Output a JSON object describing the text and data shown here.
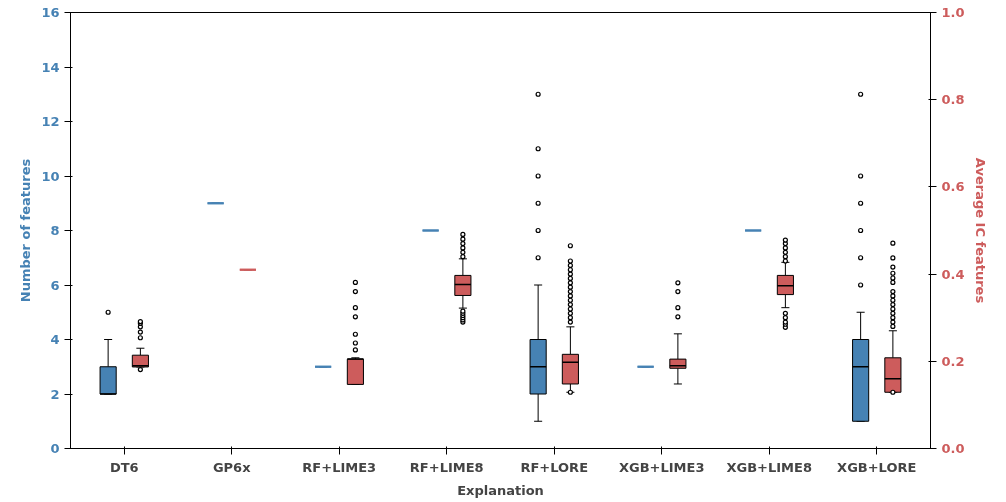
{
  "chart_data": {
    "type": "box",
    "xlabel": "Explanation",
    "ylabel": "Number of features",
    "y2label": "Average IC features",
    "categories": [
      "DT6",
      "GP6x",
      "RF+LIME3",
      "RF+LIME8",
      "RF+LORE",
      "XGB+LIME3",
      "XGB+LIME8",
      "XGB+LORE"
    ],
    "ylim": [
      0,
      16
    ],
    "yticks": [
      0,
      2,
      4,
      6,
      8,
      10,
      12,
      14,
      16
    ],
    "y2lim": [
      0,
      1
    ],
    "y2ticks": [
      {
        "value": 0,
        "label": "0.0"
      },
      {
        "value": 0.2,
        "label": "0.2"
      },
      {
        "value": 0.4,
        "label": "0.4"
      },
      {
        "value": 0.6,
        "label": "0.6"
      },
      {
        "value": 0.8,
        "label": "0.8"
      },
      {
        "value": 1,
        "label": "1.0"
      }
    ],
    "grid": false,
    "series": [
      {
        "color": "#4682b4",
        "axis": "y",
        "boxes": [
          {
            "low": 2,
            "q1": 2,
            "median": 2,
            "q3": 3,
            "high": 4,
            "outliers": [
              5
            ]
          },
          {
            "low": 9,
            "q1": 9,
            "median": 9,
            "q3": 9,
            "high": 9
          },
          {
            "low": 3,
            "q1": 3,
            "median": 3,
            "q3": 3,
            "high": 3
          },
          {
            "low": 8,
            "q1": 8,
            "median": 8,
            "q3": 8,
            "high": 8
          },
          {
            "low": 1,
            "q1": 2,
            "median": 3,
            "q3": 4,
            "high": 6,
            "outliers": [
              7,
              8,
              9,
              10,
              11,
              13
            ]
          },
          {
            "low": 3,
            "q1": 3,
            "median": 3,
            "q3": 3,
            "high": 3
          },
          {
            "low": 8,
            "q1": 8,
            "median": 8,
            "q3": 8,
            "high": 8
          },
          {
            "low": 1,
            "q1": 1,
            "median": 3,
            "q3": 4,
            "high": 5,
            "outliers": [
              6,
              7,
              8,
              9,
              10,
              13
            ]
          }
        ]
      },
      {
        "color": "#cd5c5c",
        "axis": "y2",
        "boxes": [
          {
            "low": 0.187,
            "q1": 0.187,
            "median": 0.19,
            "q3": 0.214,
            "high": 0.23,
            "outliers": [
              0.181,
              0.254,
              0.267,
              0.279,
              0.287,
              0.291
            ]
          },
          {
            "low": 0.41,
            "q1": 0.41,
            "median": 0.41,
            "q3": 0.41,
            "high": 0.41
          },
          {
            "low": 0.147,
            "q1": 0.147,
            "median": 0.205,
            "q3": 0.205,
            "high": 0.208,
            "outliers": [
              0.226,
              0.242,
              0.262,
              0.302,
              0.323,
              0.36,
              0.381
            ]
          },
          {
            "low": 0.322,
            "q1": 0.351,
            "median": 0.376,
            "q3": 0.397,
            "high": 0.435,
            "outliers": [
              0.29,
              0.295,
              0.3,
              0.305,
              0.31,
              0.315,
              0.44,
              0.45,
              0.46,
              0.47,
              0.48,
              0.491
            ]
          },
          {
            "low": 0.129,
            "q1": 0.148,
            "median": 0.198,
            "q3": 0.216,
            "high": 0.279,
            "outliers": [
              0.129,
              0.29,
              0.3,
              0.31,
              0.32,
              0.33,
              0.34,
              0.35,
              0.36,
              0.37,
              0.38,
              0.39,
              0.4,
              0.41,
              0.42,
              0.43,
              0.465
            ]
          },
          {
            "low": 0.148,
            "q1": 0.184,
            "median": 0.19,
            "q3": 0.205,
            "high": 0.263,
            "outliers": [
              0.302,
              0.323,
              0.36,
              0.38
            ]
          },
          {
            "low": 0.323,
            "q1": 0.353,
            "median": 0.373,
            "q3": 0.397,
            "high": 0.427,
            "outliers": [
              0.278,
              0.285,
              0.29,
              0.3,
              0.31,
              0.43,
              0.44,
              0.45,
              0.46,
              0.47,
              0.478
            ]
          },
          {
            "low": 0.129,
            "q1": 0.129,
            "median": 0.16,
            "q3": 0.208,
            "high": 0.27,
            "outliers": [
              0.129,
              0.28,
              0.29,
              0.3,
              0.31,
              0.32,
              0.33,
              0.34,
              0.35,
              0.36,
              0.381,
              0.391,
              0.402,
              0.416,
              0.437,
              0.471
            ]
          }
        ]
      }
    ]
  }
}
